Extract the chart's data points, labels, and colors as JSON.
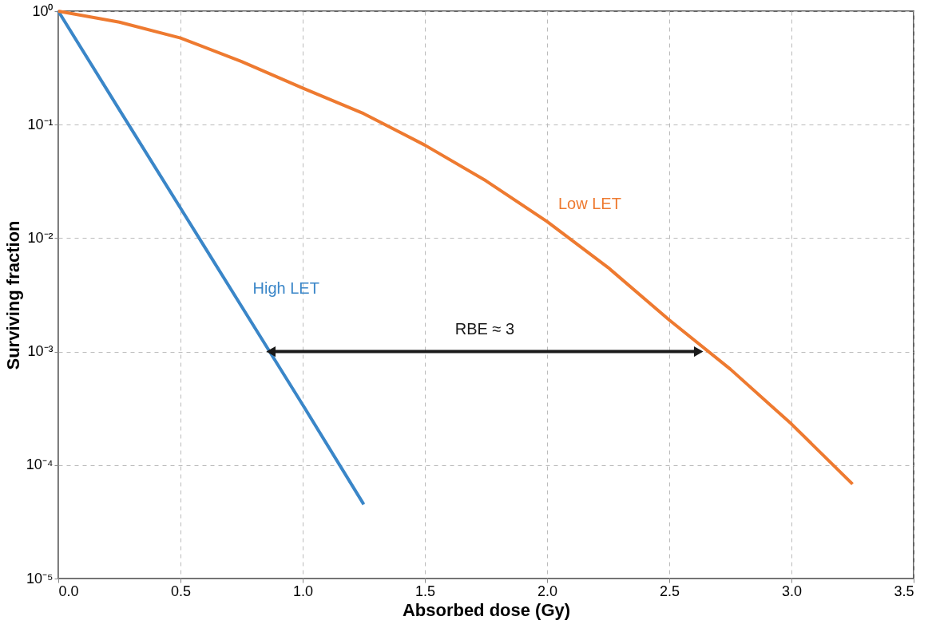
{
  "chart_data": {
    "type": "line",
    "xlabel": "Absorbed dose (Gy)",
    "ylabel": "Surviving fraction",
    "log": "y",
    "grid": true,
    "line_style": "solid",
    "xlim": [
      0,
      3.5
    ],
    "xticks": [
      {
        "value": 0,
        "label": "0.0"
      },
      0.5,
      {
        "value": 1,
        "label": "1.0"
      },
      1.5,
      {
        "value": 2,
        "label": "2.0"
      },
      2.5,
      {
        "value": 3,
        "label": "3.0"
      },
      3.5
    ],
    "ylim": [
      1e-05,
      1
    ],
    "yticks": [
      {
        "value": 1e-05,
        "label": "10⁻⁵"
      },
      {
        "value": 0.0001,
        "label": "10⁻⁴"
      },
      {
        "value": 0.001,
        "label": "10⁻³"
      },
      {
        "value": 0.01,
        "label": "10⁻²"
      },
      {
        "value": 0.1,
        "label": "10⁻¹"
      },
      {
        "value": 1,
        "label": "10⁰"
      }
    ],
    "series": [
      {
        "name": "High LET",
        "color": "#3a86c8",
        "x": [
          0,
          0.25,
          0.5,
          0.75,
          1.0,
          1.25
        ],
        "values": [
          1,
          0.135,
          0.0184,
          0.0025,
          0.00034,
          4.5e-05
        ]
      },
      {
        "name": "Low LET",
        "color": "#ee7a30",
        "x": [
          0,
          0.25,
          0.5,
          0.75,
          1.0,
          1.25,
          1.5,
          1.75,
          2.0,
          2.25,
          2.5,
          2.75,
          3.0,
          3.25
        ],
        "values": [
          1,
          0.8,
          0.58,
          0.36,
          0.21,
          0.125,
          0.066,
          0.032,
          0.014,
          0.0055,
          0.0019,
          0.0007,
          0.00023,
          6.8e-05
        ]
      },
      {
        "type": "line",
        "color": "#1a1a1a",
        "marker": "triangle",
        "x": [
          0.87,
          2.62
        ],
        "values": [
          0.001,
          0.001
        ]
      }
    ],
    "annotations": [
      {
        "text": "RBE ≈ 3",
        "x": 1.745,
        "y": 0.001
      }
    ]
  }
}
